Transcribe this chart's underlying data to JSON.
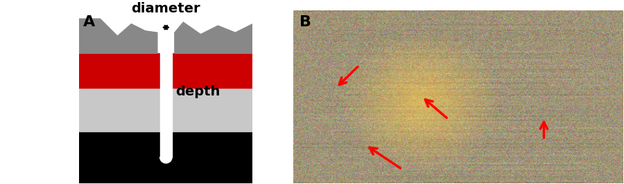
{
  "panel_A_label": "A",
  "panel_B_label": "B",
  "bg_color": "#ffffff",
  "layers": {
    "top_coat_color": "#888888",
    "red_layer_color": "#cc0000",
    "steel_layer_color": "#c8c8c8",
    "black_layer_color": "#000000",
    "white_hole_color": "#ffffff"
  },
  "text": {
    "diameter_label": "diameter",
    "depth_label": "depth",
    "diameter_fontsize": 14,
    "depth_fontsize": 14,
    "label_fontsize": 16,
    "label_fontweight": "bold"
  },
  "arrows": {
    "diameter_arrow_color": "#000000",
    "depth_arrow_color": "#ffffff"
  },
  "red_arrows": [
    [
      0.33,
      0.08,
      0.22,
      0.22
    ],
    [
      0.47,
      0.37,
      0.39,
      0.5
    ],
    [
      0.76,
      0.25,
      0.76,
      0.38
    ],
    [
      0.2,
      0.68,
      0.13,
      0.55
    ]
  ]
}
